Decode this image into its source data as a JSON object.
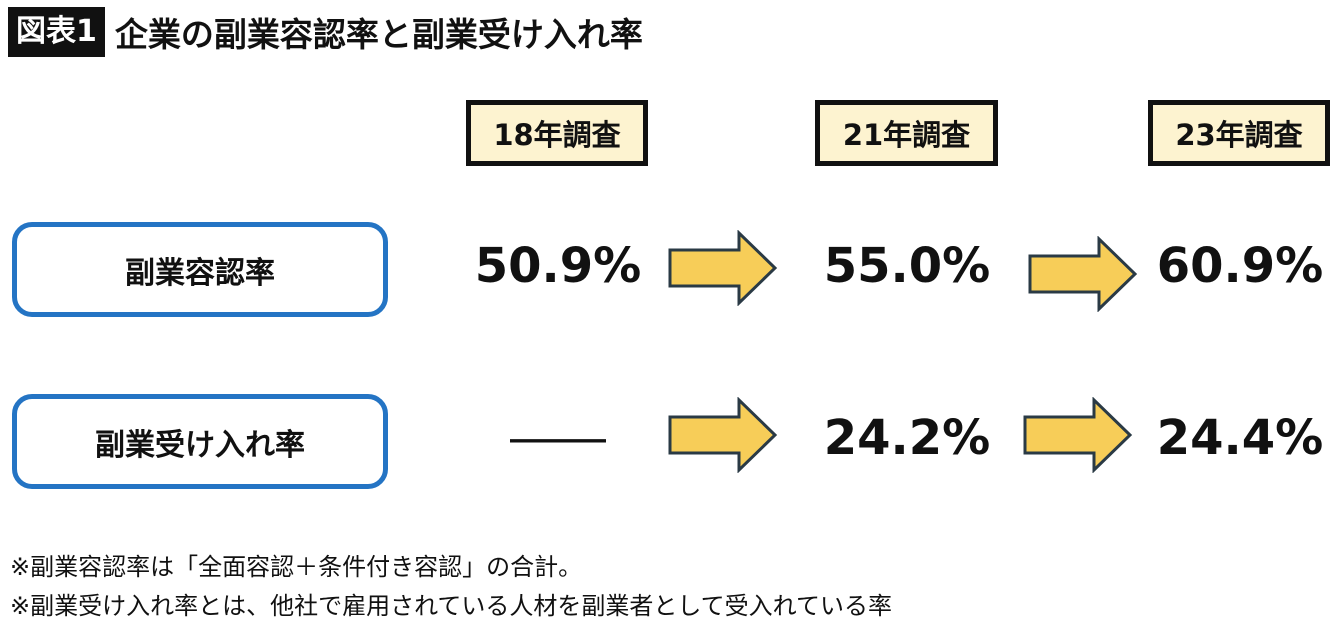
{
  "title": {
    "badge": "図表1",
    "text": "企業の副業容認率と副業受け入れ率"
  },
  "chart_data": {
    "type": "table",
    "columns": [
      "18年調査",
      "21年調査",
      "23年調査"
    ],
    "rows": [
      {
        "label": "副業容認率",
        "values": [
          "50.9%",
          "55.0%",
          "60.9%"
        ]
      },
      {
        "label": "副業受け入れ率",
        "values": [
          "――",
          "24.2%",
          "24.4%"
        ]
      }
    ]
  },
  "notes": [
    "※副業容認率は「全面容認＋条件付き容認」の合計。",
    "※副業受け入れ率とは、他社で雇用されている人材を副業者として受入れている率"
  ],
  "colors": {
    "label_border": "#2474c4",
    "arrow_fill": "#f7cd58",
    "arrow_stroke": "#2a3a45",
    "year_box_fill": "#fdf3d0"
  }
}
